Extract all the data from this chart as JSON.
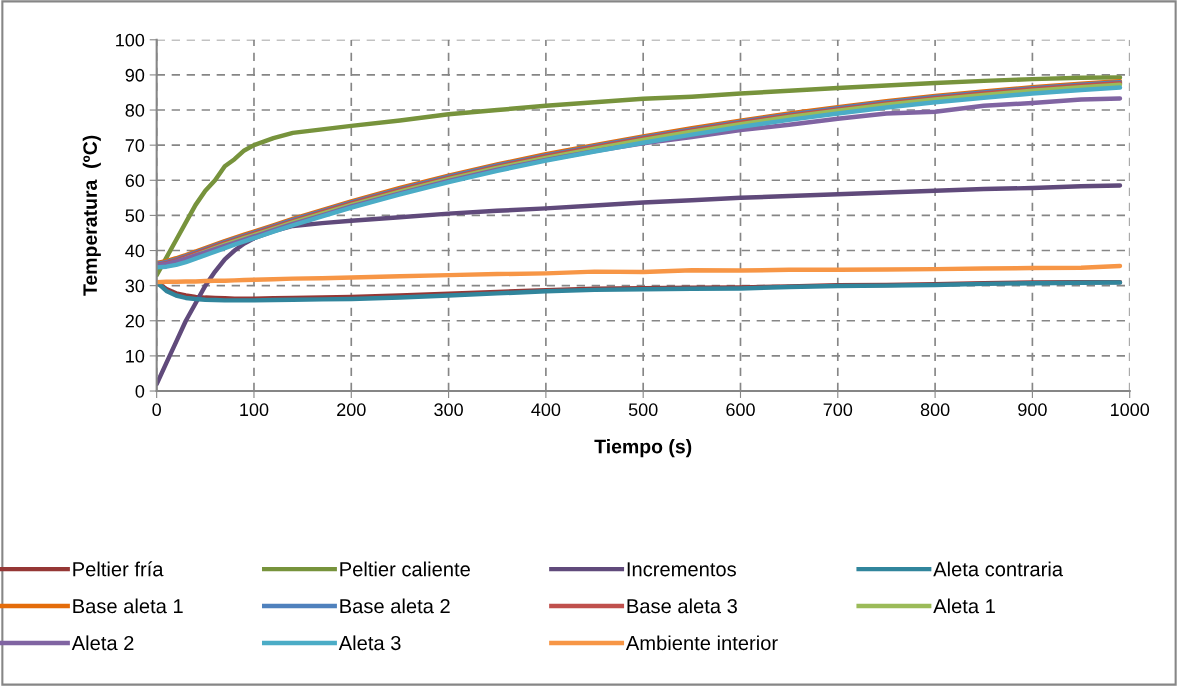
{
  "chart_data": {
    "type": "line",
    "xlabel": "Tiempo (s)",
    "ylabel": "Temperatura  (ºC)",
    "x": [
      0,
      10,
      20,
      30,
      40,
      50,
      60,
      70,
      80,
      90,
      100,
      120,
      140,
      170,
      200,
      250,
      300,
      350,
      400,
      450,
      500,
      550,
      600,
      650,
      700,
      750,
      800,
      850,
      900,
      950,
      990
    ],
    "xlim": [
      0,
      1000
    ],
    "xticks": [
      0,
      100,
      200,
      300,
      400,
      500,
      600,
      700,
      800,
      900,
      1000
    ],
    "ylim": [
      0,
      100
    ],
    "yticks": [
      0,
      10,
      20,
      30,
      40,
      50,
      60,
      70,
      80,
      90,
      100
    ],
    "grid": true,
    "legend": "bottom",
    "marker": "none",
    "line_style": "solid",
    "series": [
      {
        "name": "Peltier fría",
        "color": "#953735",
        "values": [
          31,
          29,
          27.8,
          27.2,
          26.8,
          26.6,
          26.5,
          26.4,
          26.3,
          26.3,
          26.3,
          26.4,
          26.5,
          26.6,
          26.8,
          27.2,
          27.7,
          28.2,
          28.7,
          29.1,
          29.3,
          29.4,
          29.5,
          29.8,
          30.1,
          30.2,
          30.4,
          30.7,
          30.9,
          31,
          31
        ]
      },
      {
        "name": "Peltier caliente",
        "color": "#77933c",
        "values": [
          33,
          38,
          43,
          48,
          53,
          57,
          60,
          64,
          66,
          68.5,
          70,
          72,
          73.5,
          74.5,
          75.5,
          77,
          78.8,
          80,
          81.2,
          82.2,
          83.2,
          83.8,
          84.7,
          85.5,
          86.3,
          87,
          87.7,
          88.3,
          88.8,
          89.2,
          89.3
        ]
      },
      {
        "name": "Incrementos",
        "color": "#604a7b",
        "values": [
          2,
          8,
          14,
          20,
          25,
          30,
          34,
          37.5,
          40,
          42,
          43.5,
          45.5,
          47,
          47.8,
          48.5,
          49.5,
          50.5,
          51.3,
          52,
          52.8,
          53.7,
          54.3,
          55,
          55.5,
          56,
          56.5,
          57,
          57.5,
          57.8,
          58.3,
          58.5
        ]
      },
      {
        "name": "Aleta contraria",
        "color": "#31859c",
        "values": [
          31,
          28.5,
          27.2,
          26.5,
          26.2,
          26,
          25.9,
          25.8,
          25.8,
          25.8,
          25.8,
          25.9,
          26,
          26.1,
          26.2,
          26.6,
          27.2,
          27.8,
          28.4,
          28.8,
          29,
          29.1,
          29.2,
          29.6,
          29.9,
          30,
          30.2,
          30.5,
          30.7,
          30.8,
          30.9
        ]
      },
      {
        "name": "Base aleta 1",
        "color": "#e46c0a",
        "values": [
          36.5,
          37,
          37.8,
          38.7,
          39.7,
          40.7,
          41.7,
          42.7,
          43.6,
          44.5,
          45.4,
          47.2,
          49,
          51.5,
          54,
          57.8,
          61.3,
          64.5,
          67.4,
          70,
          72.5,
          74.8,
          77,
          79,
          80.8,
          82.5,
          84,
          85.3,
          86.5,
          87.5,
          88.2
        ]
      },
      {
        "name": "Base aleta 2",
        "color": "#4f81bd",
        "values": [
          36.2,
          36.7,
          37.5,
          38.4,
          39.4,
          40.4,
          41.4,
          42.4,
          43.3,
          44.2,
          45.1,
          46.9,
          48.7,
          51.2,
          53.7,
          57.5,
          61,
          64.2,
          67.1,
          69.7,
          72.2,
          74.5,
          76.7,
          78.7,
          80.5,
          82.2,
          83.7,
          85,
          86.2,
          87.2,
          87.9
        ]
      },
      {
        "name": "Base aleta 3",
        "color": "#c0504d",
        "values": [
          35.9,
          36.4,
          37.2,
          38.1,
          39.1,
          40.1,
          41.1,
          42.1,
          43,
          43.9,
          44.8,
          46.6,
          48.4,
          50.9,
          53.4,
          57.2,
          60.7,
          63.9,
          66.8,
          69.4,
          71.9,
          74.2,
          76.4,
          78.4,
          80.2,
          81.9,
          83.4,
          84.7,
          85.9,
          86.9,
          87.6
        ]
      },
      {
        "name": "Aleta 1",
        "color": "#9bbb59",
        "values": [
          35.5,
          36,
          36.8,
          37.7,
          38.7,
          39.7,
          40.7,
          41.7,
          42.6,
          43.5,
          44.4,
          46.2,
          48,
          50.5,
          53,
          56.8,
          60.3,
          63.5,
          66.4,
          69,
          71.5,
          73.8,
          76,
          78,
          79.8,
          81.5,
          83,
          84.3,
          85.5,
          86.5,
          87.2
        ]
      },
      {
        "name": "Aleta 2",
        "color": "#8064a2",
        "values": [
          35.8,
          36.2,
          36.9,
          37.7,
          38.6,
          39.5,
          40.4,
          41.3,
          42.2,
          43.1,
          44,
          45.8,
          47.6,
          50,
          52.6,
          56.3,
          59.8,
          63,
          65.8,
          68.3,
          70.5,
          72.3,
          74.3,
          75.8,
          77.5,
          79,
          79.5,
          81.2,
          82,
          83,
          83.3
        ]
      },
      {
        "name": "Aleta 3",
        "color": "#4bacc6",
        "values": [
          35.2,
          35.4,
          35.9,
          36.7,
          37.7,
          38.7,
          39.7,
          40.7,
          41.7,
          42.6,
          43.5,
          45.4,
          47.2,
          49.7,
          52.2,
          56,
          59.5,
          62.7,
          65.6,
          68.2,
          70.7,
          73,
          75.2,
          77.2,
          79,
          80.7,
          82.2,
          83.5,
          84.7,
          85.7,
          86.4
        ]
      },
      {
        "name": "Ambiente interior",
        "color": "#f79646",
        "values": [
          31,
          31.1,
          31.1,
          31.2,
          31.2,
          31.3,
          31.4,
          31.4,
          31.5,
          31.6,
          31.7,
          31.8,
          32,
          32.1,
          32.3,
          32.7,
          33,
          33.3,
          33.5,
          34,
          33.9,
          34.4,
          34.3,
          34.5,
          34.5,
          34.6,
          34.7,
          34.9,
          35,
          35.1,
          35.6
        ]
      }
    ]
  }
}
